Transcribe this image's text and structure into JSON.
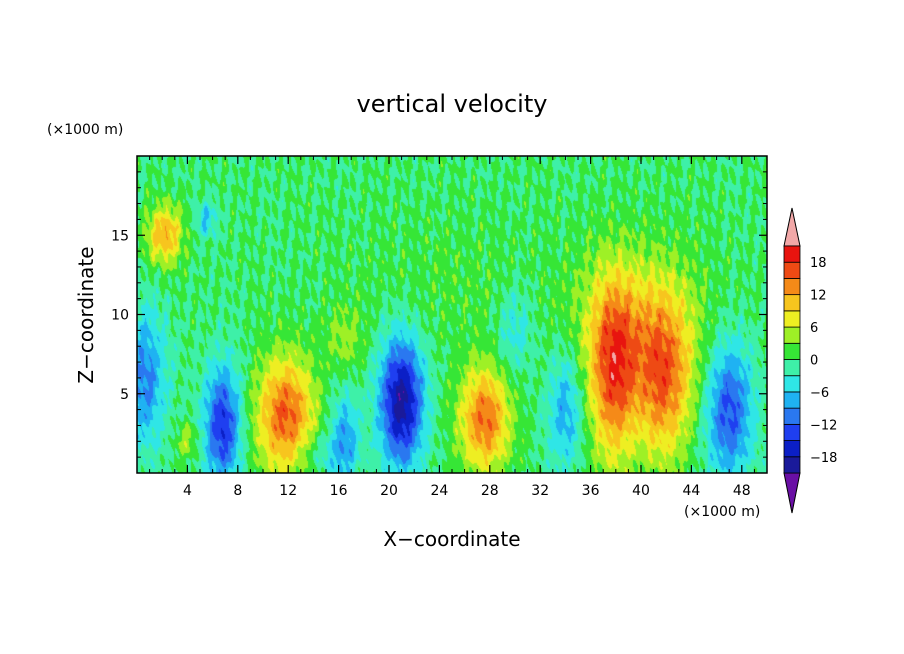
{
  "chart_data": {
    "type": "heatmap",
    "title": "vertical velocity",
    "xlabel": "X−coordinate",
    "ylabel": "Z−coordinate",
    "x_unit": "(×1000 m)",
    "y_unit": "(×1000 m)",
    "xlim": [
      0,
      50
    ],
    "ylim": [
      0,
      20
    ],
    "x_ticks": [
      4,
      8,
      12,
      16,
      20,
      24,
      28,
      32,
      36,
      40,
      44,
      48
    ],
    "x_tick_labels": [
      "4",
      "8",
      "12",
      "16",
      "20",
      "24",
      "28",
      "32",
      "36",
      "40",
      "44",
      "48"
    ],
    "y_ticks": [
      5,
      10,
      15
    ],
    "y_tick_labels": [
      "5",
      "10",
      "15"
    ],
    "colorbar": {
      "levels": [
        -21,
        -18,
        -15,
        -12,
        -9,
        -6,
        -3,
        0,
        3,
        6,
        9,
        12,
        15,
        18,
        21
      ],
      "colors": [
        "#6a0fa5",
        "#1a1a9a",
        "#0b1fc6",
        "#1f3ff0",
        "#2a78f0",
        "#1fb2f2",
        "#2fe6e6",
        "#3ef0a8",
        "#36e636",
        "#9ef026",
        "#eeee22",
        "#f7c51e",
        "#f58a18",
        "#ee4a14",
        "#e8140f",
        "#f2a8a8"
      ],
      "tick_values": [
        -18,
        -12,
        -6,
        0,
        6,
        12,
        18
      ],
      "tick_labels": [
        "−18",
        "−12",
        "−6",
        "0",
        "6",
        "12",
        "18"
      ],
      "extend": "both"
    },
    "features": [
      {
        "x": 11.8,
        "z": 3.6,
        "sx": 1.6,
        "sz": 2.6,
        "amp": 16
      },
      {
        "x": 27.6,
        "z": 3.4,
        "sx": 1.4,
        "sz": 2.3,
        "amp": 15
      },
      {
        "x": 37.8,
        "z": 6.2,
        "sx": 1.3,
        "sz": 4.0,
        "amp": 14
      },
      {
        "x": 41.8,
        "z": 5.5,
        "sx": 1.5,
        "sz": 3.5,
        "amp": 12
      },
      {
        "x": 40.0,
        "z": 9.0,
        "sx": 3.5,
        "sz": 3.5,
        "amp": 8
      },
      {
        "x": 2.2,
        "z": 15.0,
        "sx": 1.0,
        "sz": 1.3,
        "amp": 12
      },
      {
        "x": 21.0,
        "z": 4.5,
        "sx": 1.2,
        "sz": 2.8,
        "amp": -20
      },
      {
        "x": 6.8,
        "z": 3.0,
        "sx": 1.0,
        "sz": 2.6,
        "amp": -15
      },
      {
        "x": 47.0,
        "z": 4.0,
        "sx": 1.3,
        "sz": 3.0,
        "amp": -13
      },
      {
        "x": 0.6,
        "z": 6.0,
        "sx": 1.2,
        "sz": 3.0,
        "amp": -10
      },
      {
        "x": 16.5,
        "z": 2.2,
        "sx": 0.8,
        "sz": 2.0,
        "amp": -8
      },
      {
        "x": 34.0,
        "z": 4.0,
        "sx": 1.0,
        "sz": 2.6,
        "amp": -8
      },
      {
        "x": 30.0,
        "z": 9.0,
        "sx": 1.0,
        "sz": 2.0,
        "amp": -5
      },
      {
        "x": 5.5,
        "z": 16.0,
        "sx": 0.6,
        "sz": 0.8,
        "amp": -6
      },
      {
        "x": 14.5,
        "z": 1.2,
        "sx": 1.5,
        "sz": 1.0,
        "amp": -4
      },
      {
        "x": 4.0,
        "z": 2.0,
        "sx": 0.6,
        "sz": 0.8,
        "amp": 5
      },
      {
        "x": 16.5,
        "z": 8.5,
        "sx": 1.0,
        "sz": 1.5,
        "amp": 4
      },
      {
        "x": 25.0,
        "z": 12.0,
        "sx": 6.0,
        "sz": 3.0,
        "amp": 1.5
      }
    ]
  }
}
